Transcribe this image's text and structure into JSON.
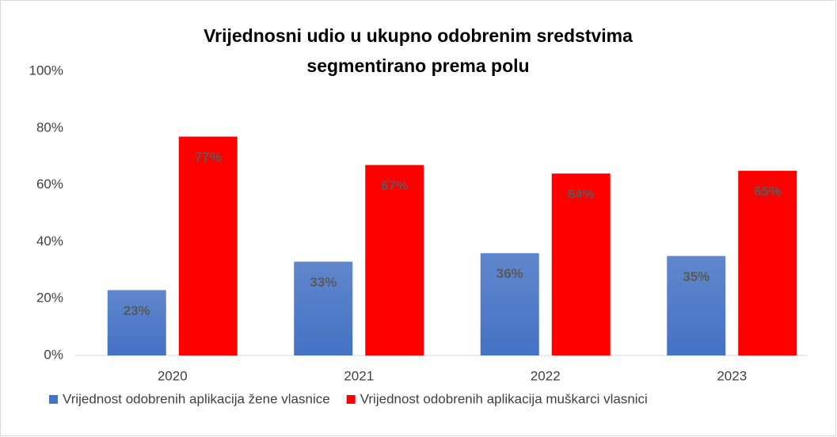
{
  "chart_data": {
    "type": "bar",
    "title": [
      "Vrijednosni udio u ukupno odobrenim sredstvima",
      "segmentirano prema polu"
    ],
    "categories": [
      "2020",
      "2021",
      "2022",
      "2023"
    ],
    "series": [
      {
        "name": "Vrijednost odobrenih aplikacija žene vlasnice",
        "color": "#4472c4",
        "values": [
          23,
          33,
          36,
          35
        ],
        "value_labels": [
          "23%",
          "33%",
          "36%",
          "35%"
        ]
      },
      {
        "name": "Vrijednost odobrenih aplikacija muškarci vlasnici",
        "color": "#ff0000",
        "values": [
          77,
          67,
          64,
          65
        ],
        "value_labels": [
          "77%",
          "67%",
          "64%",
          "65%"
        ]
      }
    ],
    "ylim": [
      0,
      100
    ],
    "yticks": [
      {
        "value": 0,
        "label": "0%"
      },
      {
        "value": 20,
        "label": "20%"
      },
      {
        "value": 40,
        "label": "40%"
      },
      {
        "value": 60,
        "label": "60%"
      },
      {
        "value": 80,
        "label": "80%"
      },
      {
        "value": 100,
        "label": "100%"
      }
    ],
    "grid": false,
    "legend": "bottom"
  }
}
